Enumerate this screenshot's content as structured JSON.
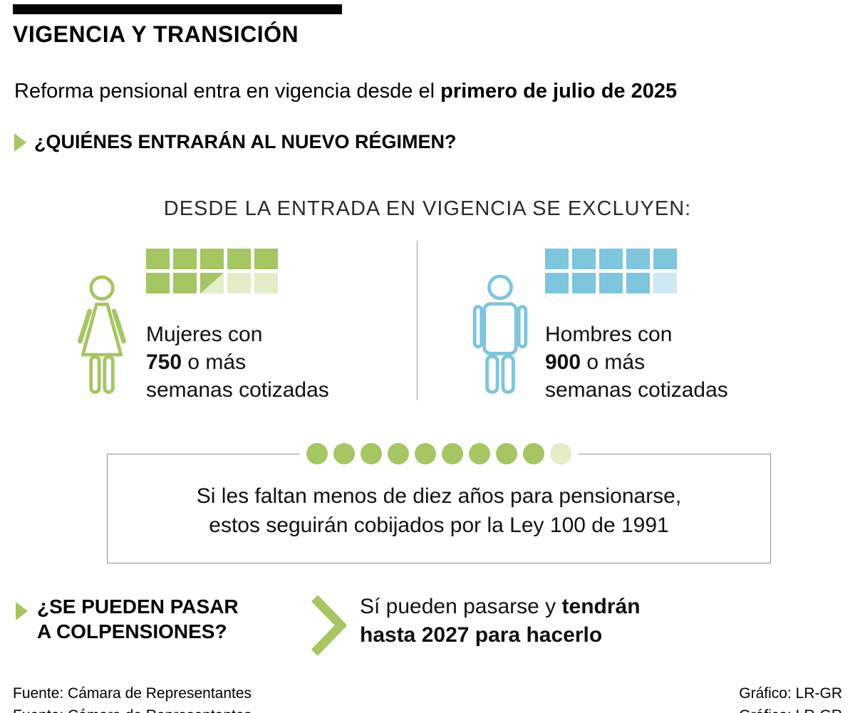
{
  "colors": {
    "green": "#a5c663",
    "green_light": "#e3edc8",
    "blue": "#7ec5de",
    "blue_light": "#cfe9f4",
    "text": "#111111",
    "gray": "#9b9b9b"
  },
  "header": {
    "title": "VIGENCIA Y TRANSICIÓN",
    "subtitle_regular": "Reforma pensional entra en vigencia desde el ",
    "subtitle_bold": "primero de julio de 2025"
  },
  "regimen": {
    "question": "¿QUIÉNES ENTRARÁN AL NUEVO RÉGIMEN?",
    "exclusion_heading": "DESDE LA ENTRADA EN VIGENCIA SE EXCLUYEN:",
    "women": {
      "line1": "Mujeres con",
      "value": "750",
      "value_suffix": " o más",
      "line3": "semanas cotizadas",
      "cells": [
        "full",
        "full",
        "full",
        "full",
        "full",
        "full",
        "full",
        "half",
        "light",
        "light"
      ]
    },
    "men": {
      "line1": "Hombres con",
      "value": "900",
      "value_suffix": " o más",
      "line3": "semanas cotizadas",
      "cells": [
        "full",
        "full",
        "full",
        "full",
        "full",
        "full",
        "full",
        "full",
        "full",
        "light"
      ]
    }
  },
  "transition_box": {
    "dots": [
      "full",
      "full",
      "full",
      "full",
      "full",
      "full",
      "full",
      "full",
      "full",
      "light"
    ],
    "line1": "Si les faltan menos de diez años para pensionarse,",
    "line2": "estos seguirán cobijados por la Ley 100 de 1991"
  },
  "colpensiones": {
    "question_line1": "¿SE PUEDEN PASAR",
    "question_line2": "A COLPENSIONES?",
    "answer_regular": "Sí pueden pasarse y ",
    "answer_bold_line1": "tendrán",
    "answer_bold_line2": "hasta 2027 para hacerlo"
  },
  "footer": {
    "source": "Fuente: Cámara de Representantes",
    "credit": "Gráfico: LR-GR"
  }
}
